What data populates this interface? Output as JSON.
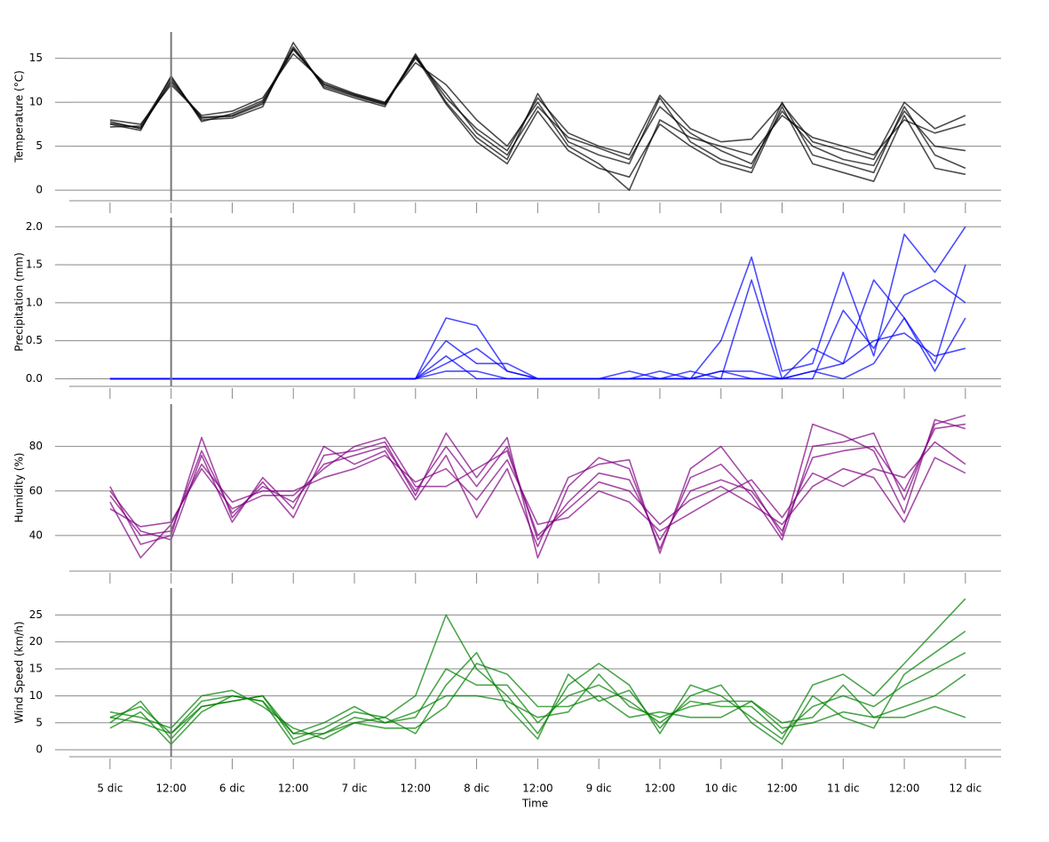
{
  "chart_data": [
    {
      "type": "line",
      "ylabel": "Temperature (°C)",
      "x": [
        0,
        6,
        12,
        18,
        24,
        30,
        36,
        42,
        48,
        54,
        60,
        66,
        72,
        78,
        84,
        90,
        96,
        102,
        108,
        114,
        120,
        126,
        132,
        138,
        144,
        150,
        156,
        162,
        168
      ],
      "xlim": [
        -8,
        175
      ],
      "ylim": [
        -1.2,
        18
      ],
      "yticks": [
        0,
        5,
        10,
        15
      ],
      "grid": true,
      "vline": 12,
      "series": [
        {
          "color": "#000000",
          "values": [
            7.8,
            7,
            12.5,
            8.3,
            8.5,
            10,
            16,
            12,
            10.8,
            9.8,
            15,
            11,
            6.5,
            4,
            9.5,
            6,
            4.8,
            3.5,
            9.5,
            6.5,
            4.5,
            3,
            9,
            5,
            3.5,
            2.8,
            9,
            5,
            4.5
          ]
        },
        {
          "color": "#000000",
          "values": [
            7.2,
            7.3,
            12.8,
            8.0,
            8.2,
            9.5,
            16.8,
            11.6,
            10.5,
            9.5,
            15.5,
            10,
            6,
            3.5,
            11,
            5.5,
            4,
            3,
            10.5,
            5.5,
            3.5,
            2.5,
            10,
            4,
            3,
            2,
            9.5,
            4,
            2.5
          ]
        },
        {
          "color": "#000000",
          "values": [
            8,
            7.5,
            12,
            8.5,
            9,
            10.5,
            15.5,
            12.3,
            11,
            10,
            14.5,
            12,
            8,
            5,
            10,
            5,
            3,
            0,
            8,
            6,
            5,
            4,
            8.5,
            6,
            5,
            4,
            8,
            6.5,
            7.5
          ]
        },
        {
          "color": "#000000",
          "values": [
            7.5,
            6.8,
            13,
            7.8,
            8.7,
            10.2,
            16.3,
            11.8,
            10.7,
            9.7,
            15.2,
            9.8,
            5.5,
            3,
            9,
            4.5,
            2.5,
            1.5,
            7.5,
            5,
            3,
            2,
            9.5,
            3,
            2,
            1,
            8.5,
            2.5,
            1.8
          ]
        },
        {
          "color": "#000000",
          "values": [
            7.6,
            7.1,
            12.3,
            8.2,
            8.4,
            9.8,
            16.1,
            12.1,
            10.9,
            9.9,
            15.3,
            10.5,
            7,
            4.5,
            10.5,
            6.5,
            5,
            4,
            10.8,
            7,
            5.5,
            5.8,
            9.8,
            5.5,
            4.5,
            3.5,
            10,
            7,
            8.5
          ]
        }
      ]
    },
    {
      "type": "line",
      "ylabel": "Precipitation (mm)",
      "x": [
        0,
        6,
        12,
        18,
        24,
        30,
        36,
        42,
        48,
        54,
        60,
        66,
        72,
        78,
        84,
        90,
        96,
        102,
        108,
        114,
        120,
        126,
        132,
        138,
        144,
        150,
        156,
        162,
        168
      ],
      "xlim": [
        -8,
        175
      ],
      "ylim": [
        -0.1,
        2.12
      ],
      "yticks": [
        {
          "value": 0,
          "label": "0.0"
        },
        {
          "value": 0.5,
          "label": "0.5"
        },
        {
          "value": 1,
          "label": "1.0"
        },
        {
          "value": 1.5,
          "label": "1.5"
        },
        {
          "value": 2,
          "label": "2.0"
        }
      ],
      "grid": true,
      "vline": 12,
      "series": [
        {
          "color": "#0000ff",
          "values": [
            0,
            0,
            0,
            0,
            0,
            0,
            0,
            0,
            0,
            0,
            0,
            0.8,
            0.7,
            0.1,
            0,
            0,
            0,
            0,
            0,
            0,
            0.5,
            1.6,
            0.1,
            0.2,
            1.4,
            0.3,
            1.9,
            1.4,
            2.0
          ]
        },
        {
          "color": "#0000ff",
          "values": [
            0,
            0,
            0,
            0,
            0,
            0,
            0,
            0,
            0,
            0,
            0,
            0.5,
            0.2,
            0.2,
            0,
            0,
            0,
            0,
            0.1,
            0,
            0.1,
            0.1,
            0,
            0.1,
            0.2,
            1.3,
            0.8,
            0.2,
            1.5
          ]
        },
        {
          "color": "#0000ff",
          "values": [
            0,
            0,
            0,
            0,
            0,
            0,
            0,
            0,
            0,
            0,
            0,
            0.2,
            0.4,
            0.1,
            0,
            0,
            0,
            0,
            0,
            0,
            0.1,
            0,
            0,
            0,
            0.9,
            0.4,
            1.1,
            1.3,
            1.0
          ]
        },
        {
          "color": "#0000ff",
          "values": [
            0,
            0,
            0,
            0,
            0,
            0,
            0,
            0,
            0,
            0,
            0,
            0.1,
            0.1,
            0,
            0,
            0,
            0,
            0.1,
            0,
            0.1,
            0,
            1.3,
            0,
            0.4,
            0.2,
            0.5,
            0.6,
            0.3,
            0.4
          ]
        },
        {
          "color": "#0000ff",
          "values": [
            0,
            0,
            0,
            0,
            0,
            0,
            0,
            0,
            0,
            0,
            0,
            0.3,
            0,
            0,
            0,
            0,
            0,
            0,
            0,
            0,
            0,
            0,
            0,
            0.1,
            0,
            0.2,
            0.8,
            0.1,
            0.8
          ]
        }
      ]
    },
    {
      "type": "line",
      "ylabel": "Humidity (%)",
      "x": [
        0,
        6,
        12,
        18,
        24,
        30,
        36,
        42,
        48,
        54,
        60,
        66,
        72,
        78,
        84,
        90,
        96,
        102,
        108,
        114,
        120,
        126,
        132,
        138,
        144,
        150,
        156,
        162,
        168
      ],
      "xlim": [
        -8,
        175
      ],
      "ylim": [
        24,
        99
      ],
      "yticks": [
        40,
        60,
        80
      ],
      "grid": true,
      "vline": 12,
      "series": [
        {
          "color": "#800080",
          "values": [
            58,
            40,
            42,
            78,
            50,
            62,
            55,
            72,
            76,
            80,
            60,
            80,
            62,
            80,
            38,
            55,
            68,
            65,
            38,
            60,
            65,
            60,
            42,
            75,
            78,
            80,
            60,
            88,
            90
          ]
        },
        {
          "color": "#800080",
          "values": [
            62,
            36,
            40,
            84,
            48,
            64,
            48,
            76,
            78,
            82,
            58,
            86,
            66,
            84,
            30,
            62,
            75,
            70,
            34,
            66,
            72,
            58,
            38,
            80,
            82,
            86,
            56,
            90,
            94
          ]
        },
        {
          "color": "#800080",
          "values": [
            55,
            30,
            45,
            72,
            55,
            60,
            60,
            66,
            70,
            76,
            64,
            70,
            56,
            74,
            45,
            48,
            60,
            55,
            42,
            50,
            58,
            65,
            48,
            68,
            62,
            70,
            66,
            82,
            72
          ]
        },
        {
          "color": "#800080",
          "values": [
            60,
            42,
            38,
            76,
            46,
            66,
            52,
            80,
            72,
            78,
            56,
            76,
            48,
            70,
            35,
            66,
            72,
            74,
            32,
            70,
            80,
            62,
            40,
            90,
            85,
            78,
            50,
            92,
            88
          ]
        },
        {
          "color": "#800080",
          "values": [
            52,
            44,
            46,
            70,
            52,
            58,
            58,
            70,
            80,
            84,
            62,
            62,
            70,
            78,
            40,
            52,
            64,
            60,
            45,
            56,
            62,
            54,
            45,
            62,
            70,
            66,
            46,
            75,
            68
          ]
        }
      ]
    },
    {
      "type": "line",
      "ylabel": "Wind Speed (km/h)",
      "xlabel": "Time",
      "x": [
        0,
        6,
        12,
        18,
        24,
        30,
        36,
        42,
        48,
        54,
        60,
        66,
        72,
        78,
        84,
        90,
        96,
        102,
        108,
        114,
        120,
        126,
        132,
        138,
        144,
        150,
        156,
        162,
        168
      ],
      "xlim": [
        -8,
        175
      ],
      "ylim": [
        -1.3,
        30
      ],
      "yticks": [
        0,
        5,
        10,
        15,
        20,
        25
      ],
      "grid": true,
      "vline": 12,
      "xticks": [
        {
          "value": 0,
          "label": "5 dic"
        },
        {
          "value": 12,
          "label": "12:00"
        },
        {
          "value": 24,
          "label": "6 dic"
        },
        {
          "value": 36,
          "label": "12:00"
        },
        {
          "value": 48,
          "label": "7 dic"
        },
        {
          "value": 60,
          "label": "12:00"
        },
        {
          "value": 72,
          "label": "8 dic"
        },
        {
          "value": 84,
          "label": "12:00"
        },
        {
          "value": 96,
          "label": "9 dic"
        },
        {
          "value": 108,
          "label": "12:00"
        },
        {
          "value": 120,
          "label": "10 dic"
        },
        {
          "value": 132,
          "label": "12:00"
        },
        {
          "value": 144,
          "label": "11 dic"
        },
        {
          "value": 156,
          "label": "12:00"
        },
        {
          "value": 168,
          "label": "12 dic"
        }
      ],
      "series": [
        {
          "color": "#008000",
          "values": [
            6,
            8,
            3,
            9,
            10,
            9,
            3,
            3,
            6,
            5,
            6,
            15,
            12,
            12,
            5,
            10,
            12,
            9,
            5,
            9,
            8,
            8,
            3,
            8,
            10,
            8,
            12,
            15,
            18
          ]
        },
        {
          "color": "#008000",
          "values": [
            5,
            9,
            2,
            8,
            9,
            10,
            2,
            4,
            7,
            6,
            10,
            25,
            15,
            10,
            3,
            12,
            16,
            12,
            3,
            12,
            10,
            6,
            2,
            12,
            14,
            10,
            16,
            22,
            28
          ]
        },
        {
          "color": "#008000",
          "values": [
            7,
            6,
            4,
            10,
            11,
            8,
            4,
            2,
            5,
            4,
            4,
            8,
            16,
            14,
            8,
            8,
            10,
            6,
            7,
            6,
            6,
            9,
            4,
            5,
            7,
            6,
            8,
            10,
            14
          ]
        },
        {
          "color": "#008000",
          "values": [
            4,
            7,
            1,
            7,
            10,
            9,
            1,
            3,
            5,
            6,
            3,
            12,
            18,
            8,
            2,
            14,
            9,
            11,
            4,
            10,
            12,
            5,
            1,
            10,
            6,
            4,
            14,
            18,
            22
          ]
        },
        {
          "color": "#008000",
          "values": [
            6,
            5,
            3,
            8,
            9,
            10,
            3,
            5,
            8,
            5,
            7,
            10,
            10,
            9,
            6,
            7,
            14,
            8,
            6,
            8,
            9,
            9,
            5,
            6,
            12,
            6,
            6,
            8,
            6
          ]
        }
      ]
    }
  ]
}
